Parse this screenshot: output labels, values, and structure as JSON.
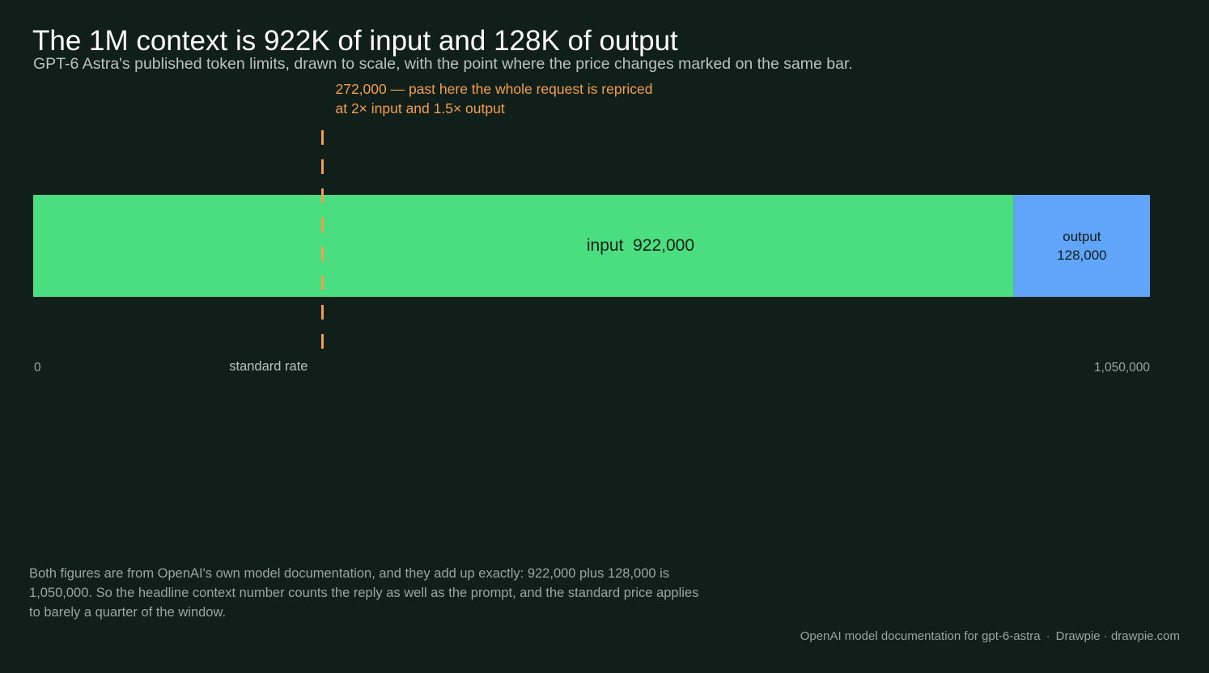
{
  "colors": {
    "background": "#101f19",
    "input": "#4ade80",
    "output": "#60a5fa",
    "threshold": "#f59e4c",
    "title": "#ffffff",
    "subtitle": "#b9c2be",
    "muted": "#9aa5a1"
  },
  "chart_data": {
    "type": "bar",
    "orientation": "horizontal",
    "stacked": true,
    "title": "The 1M context is 922K of input and 128K of output",
    "subtitle": "GPT-6 Astra's published token limits, drawn to scale, with the point where the price changes marked on the same bar.",
    "xlim": [
      0,
      1050000
    ],
    "grid": false,
    "segments": [
      {
        "name": "input",
        "label": "input",
        "value_label": "922,000",
        "value": 922000,
        "color": "#4ade80"
      },
      {
        "name": "output",
        "label": "output",
        "value_label": "128,000",
        "value": 128000,
        "color": "#60a5fa"
      }
    ],
    "threshold": {
      "value": 272000,
      "label_line1": "272,000 — past here the whole request is repriced",
      "label_line2": "at 2× input and 1.5× output",
      "below_label": "standard rate",
      "style": "dashed",
      "color": "#f59e4c"
    },
    "ticks": [
      {
        "value": 0,
        "label": "0"
      },
      {
        "value": 1050000,
        "label": "1,050,000"
      }
    ]
  },
  "footnote": "Both figures are from OpenAI's own model documentation, and they add up exactly: 922,000 plus 128,000 is 1,050,000. So the headline context number counts the reply as well as the prompt, and the standard price applies to barely a quarter of the window.",
  "credit": {
    "source": "OpenAI model documentation for gpt-6-astra",
    "separator": "·",
    "brand": "Drawpie · drawpie.com"
  }
}
